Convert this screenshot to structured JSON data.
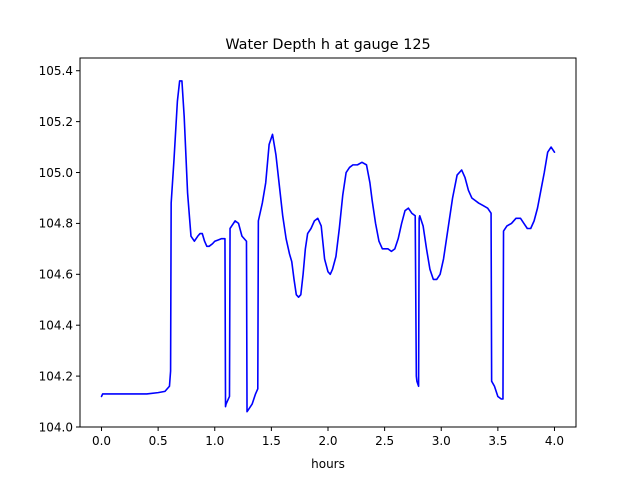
{
  "chart_data": {
    "type": "line",
    "title": "Water Depth h at gauge 125",
    "xlabel": "hours",
    "ylabel": "",
    "xlim": [
      -0.19,
      4.19
    ],
    "ylim": [
      104.0,
      105.45
    ],
    "xticks": [
      0.0,
      0.5,
      1.0,
      1.5,
      2.0,
      2.5,
      3.0,
      3.5,
      4.0
    ],
    "xtick_labels": [
      "0.0",
      "0.5",
      "1.0",
      "1.5",
      "2.0",
      "2.5",
      "3.0",
      "3.5",
      "4.0"
    ],
    "yticks": [
      104.0,
      104.2,
      104.4,
      104.6,
      104.8,
      105.0,
      105.2,
      105.4
    ],
    "ytick_labels": [
      "104.0",
      "104.2",
      "104.4",
      "104.6",
      "104.8",
      "105.0",
      "105.2",
      "105.4"
    ],
    "grid": false,
    "legend": "none",
    "series": [
      {
        "color": "#0000ff",
        "x": [
          0.0,
          0.01,
          0.1,
          0.2,
          0.3,
          0.4,
          0.5,
          0.56,
          0.6,
          0.61,
          0.615,
          0.64,
          0.67,
          0.69,
          0.71,
          0.73,
          0.76,
          0.79,
          0.82,
          0.85,
          0.87,
          0.89,
          0.91,
          0.93,
          0.95,
          0.98,
          1.0,
          1.03,
          1.06,
          1.09,
          1.095,
          1.1,
          1.13,
          1.135,
          1.15,
          1.18,
          1.21,
          1.24,
          1.28,
          1.285,
          1.3,
          1.33,
          1.36,
          1.38,
          1.385,
          1.42,
          1.45,
          1.48,
          1.51,
          1.54,
          1.57,
          1.6,
          1.63,
          1.66,
          1.68,
          1.7,
          1.72,
          1.74,
          1.76,
          1.78,
          1.8,
          1.82,
          1.85,
          1.88,
          1.91,
          1.94,
          1.97,
          2.0,
          2.02,
          2.04,
          2.07,
          2.1,
          2.13,
          2.16,
          2.19,
          2.22,
          2.26,
          2.3,
          2.34,
          2.37,
          2.39,
          2.42,
          2.45,
          2.48,
          2.5,
          2.53,
          2.56,
          2.59,
          2.62,
          2.65,
          2.68,
          2.71,
          2.74,
          2.77,
          2.78,
          2.785,
          2.8,
          2.805,
          2.81,
          2.84,
          2.87,
          2.9,
          2.93,
          2.96,
          2.99,
          3.02,
          3.06,
          3.1,
          3.14,
          3.18,
          3.21,
          3.24,
          3.27,
          3.3,
          3.33,
          3.37,
          3.41,
          3.44,
          3.445,
          3.47,
          3.5,
          3.53,
          3.545,
          3.55,
          3.58,
          3.62,
          3.66,
          3.7,
          3.73,
          3.76,
          3.79,
          3.82,
          3.85,
          3.88,
          3.91,
          3.94,
          3.97,
          4.0
        ],
        "y": [
          104.12,
          104.13,
          104.13,
          104.13,
          104.13,
          104.13,
          104.135,
          104.14,
          104.16,
          104.22,
          104.88,
          105.05,
          105.28,
          105.36,
          105.36,
          105.22,
          104.92,
          104.75,
          104.73,
          104.75,
          104.76,
          104.76,
          104.73,
          104.71,
          104.71,
          104.72,
          104.73,
          104.735,
          104.74,
          104.74,
          104.08,
          104.09,
          104.12,
          104.78,
          104.79,
          104.81,
          104.8,
          104.75,
          104.73,
          104.06,
          104.07,
          104.09,
          104.13,
          104.15,
          104.81,
          104.88,
          104.96,
          105.11,
          105.15,
          105.07,
          104.95,
          104.83,
          104.74,
          104.68,
          104.65,
          104.58,
          104.52,
          104.51,
          104.52,
          104.6,
          104.7,
          104.76,
          104.78,
          104.81,
          104.82,
          104.79,
          104.66,
          104.61,
          104.6,
          104.62,
          104.67,
          104.78,
          104.91,
          105.0,
          105.02,
          105.03,
          105.03,
          105.04,
          105.03,
          104.96,
          104.89,
          104.8,
          104.73,
          104.7,
          104.7,
          104.7,
          104.69,
          104.7,
          104.74,
          104.8,
          104.85,
          104.86,
          104.84,
          104.83,
          104.2,
          104.18,
          104.16,
          104.82,
          104.83,
          104.79,
          104.7,
          104.62,
          104.58,
          104.58,
          104.6,
          104.66,
          104.78,
          104.9,
          104.99,
          105.01,
          104.98,
          104.93,
          104.9,
          104.89,
          104.88,
          104.87,
          104.86,
          104.84,
          104.18,
          104.16,
          104.12,
          104.11,
          104.11,
          104.77,
          104.79,
          104.8,
          104.82,
          104.82,
          104.8,
          104.78,
          104.78,
          104.81,
          104.86,
          104.93,
          105.0,
          105.08,
          105.1,
          105.08
        ]
      }
    ]
  }
}
